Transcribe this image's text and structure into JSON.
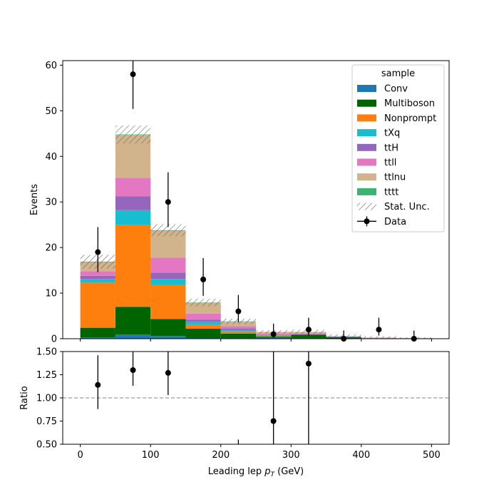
{
  "chart_data": {
    "type": "bar",
    "stacked": true,
    "bin_edges": [
      0,
      50,
      100,
      150,
      200,
      250,
      300,
      350,
      400,
      450,
      500
    ],
    "series": [
      {
        "name": "Conv",
        "color": "#1f77b4",
        "values": [
          0.3,
          0.9,
          0.6,
          0.15,
          0.1,
          0.2,
          0.1,
          0.0,
          0.0,
          0.1
        ]
      },
      {
        "name": "Multiboson",
        "color": "#006400",
        "values": [
          2.1,
          6.1,
          3.7,
          2.05,
          1.0,
          0.25,
          0.8,
          0.35,
          0.1,
          0.0
        ]
      },
      {
        "name": "Nonprompt",
        "color": "#ff7f0e",
        "values": [
          9.9,
          17.9,
          7.5,
          0.8,
          0.5,
          0.25,
          0.0,
          0.0,
          0.0,
          0.0
        ]
      },
      {
        "name": "tXq",
        "color": "#17becf",
        "values": [
          0.8,
          3.3,
          1.3,
          0.7,
          0.35,
          0.1,
          0.05,
          0.05,
          0.0,
          0.0
        ]
      },
      {
        "name": "ttH",
        "color": "#9467bd",
        "values": [
          0.7,
          3.0,
          1.4,
          0.5,
          0.3,
          0.1,
          0.05,
          0.0,
          0.0,
          0.0
        ]
      },
      {
        "name": "ttll",
        "color": "#e377c2",
        "values": [
          1.0,
          4.1,
          3.3,
          1.3,
          0.5,
          0.2,
          0.2,
          0.1,
          0.05,
          0.0
        ]
      },
      {
        "name": "ttlnu",
        "color": "#d2b48c",
        "values": [
          2.0,
          9.4,
          5.9,
          2.4,
          1.0,
          0.4,
          0.3,
          0.1,
          0.1,
          0.0
        ]
      },
      {
        "name": "tttt",
        "color": "#3cb371",
        "values": [
          0.1,
          0.1,
          0.1,
          0.05,
          0.05,
          0.0,
          0.0,
          0.0,
          0.0,
          0.0
        ]
      }
    ],
    "stat_unc": [
      1.5,
      2.0,
      1.3,
      0.8,
      0.6,
      0.4,
      0.5,
      0.4,
      0.3,
      0.2
    ],
    "data": {
      "name": "Data",
      "x": [
        25,
        75,
        125,
        175,
        225,
        275,
        325,
        375,
        425,
        475
      ],
      "y": [
        19,
        58,
        30,
        13,
        6,
        1,
        2,
        0,
        2,
        0
      ],
      "yerr_low": [
        4.4,
        7.6,
        5.5,
        3.6,
        2.4,
        0.8,
        1.3,
        0,
        1.3,
        0
      ],
      "yerr_high": [
        5.5,
        8.7,
        6.5,
        4.7,
        3.6,
        2.3,
        2.6,
        1.8,
        2.6,
        1.8
      ]
    },
    "ratio": {
      "x": [
        25,
        75,
        125,
        175,
        225,
        275,
        325
      ],
      "y": [
        1.14,
        1.3,
        1.27,
        null,
        null,
        0.75,
        1.37
      ],
      "err_low": [
        0.26,
        0.17,
        0.24,
        null,
        null,
        0.75,
        1.37
      ],
      "err_high": [
        0.32,
        0.2,
        0.26,
        0.36,
        0.55,
        0.77,
        0.6
      ]
    },
    "xlim": [
      -25,
      525
    ],
    "ylim": [
      0,
      61
    ],
    "ratio_ylim": [
      0.5,
      1.5
    ],
    "xticks": [
      "0",
      "100",
      "200",
      "300",
      "400",
      "500"
    ],
    "yticks": [
      "0",
      "10",
      "20",
      "30",
      "40",
      "50",
      "60"
    ],
    "ratio_yticks": [
      "0.50",
      "0.75",
      "1.00",
      "1.25",
      "1.50"
    ],
    "xlabel": "Leading lep p_T (GeV)",
    "ylabel": "Events",
    "ratio_ylabel": "Ratio",
    "legend": {
      "title": "sample",
      "position": "top-right",
      "entries": [
        "Conv",
        "Multiboson",
        "Nonprompt",
        "tXq",
        "ttH",
        "ttll",
        "ttlnu",
        "tttt",
        "Stat. Unc.",
        "Data"
      ]
    }
  }
}
